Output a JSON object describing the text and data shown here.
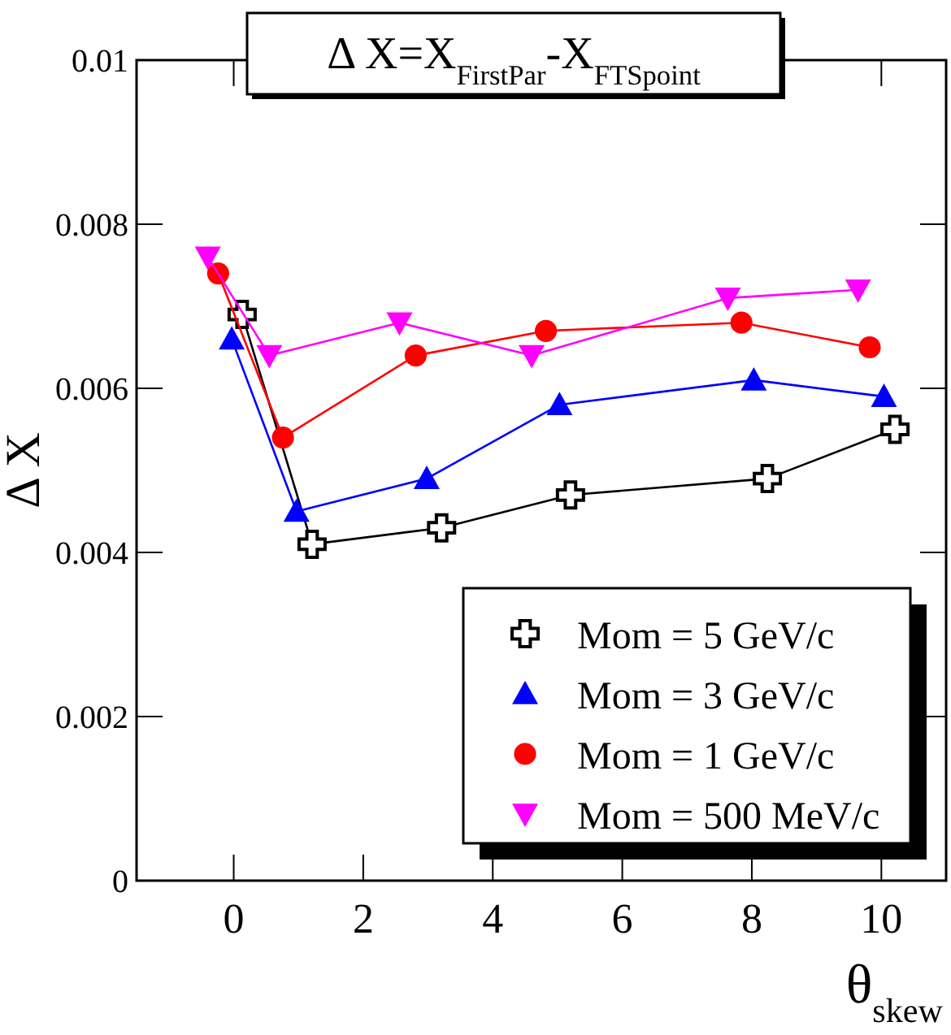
{
  "chart_data": {
    "type": "line",
    "title": "Δ X=X$_{FirstPar}$-X$_{FTSpoint}$",
    "xlabel": "θ$_{skew}$",
    "ylabel": "Δ X",
    "xlim": [
      -1.5,
      11
    ],
    "xticks": [
      0,
      2,
      4,
      6,
      8,
      10
    ],
    "ylim": [
      0,
      0.01
    ],
    "yticks": [
      0,
      0.002,
      0.004,
      0.006,
      0.008,
      0.01
    ],
    "grid": false,
    "legend": "bottom right",
    "series": [
      {
        "name": "Mom = 5 GeV/c",
        "color": "#000000",
        "marker": "cross",
        "x": [
          0.13,
          1.21,
          3.21,
          5.2,
          8.24,
          10.21
        ],
        "values": [
          0.0069,
          0.0041,
          0.0043,
          0.0047,
          0.0049,
          0.0055
        ]
      },
      {
        "name": "Mom = 3 GeV/c",
        "color": "#0000ff",
        "marker": "triangle",
        "x": [
          -0.03,
          0.97,
          2.98,
          5.03,
          8.03,
          10.04
        ],
        "values": [
          0.0066,
          0.0045,
          0.0049,
          0.0058,
          0.0061,
          0.0059
        ]
      },
      {
        "name": "Mom = 1 GeV/c",
        "color": "#ff0000",
        "marker": "circle",
        "x": [
          -0.24,
          0.76,
          2.81,
          4.82,
          7.84,
          9.82
        ],
        "values": [
          0.0074,
          0.0054,
          0.0064,
          0.0067,
          0.0068,
          0.0065
        ]
      },
      {
        "name": "Mom = 500 MeV/c",
        "color": "#ff00ff",
        "marker": "triangle-down",
        "x": [
          -0.4,
          0.55,
          2.56,
          4.6,
          7.63,
          9.64
        ],
        "values": [
          0.0076,
          0.0064,
          0.0068,
          0.0064,
          0.0071,
          0.0072
        ]
      }
    ]
  }
}
